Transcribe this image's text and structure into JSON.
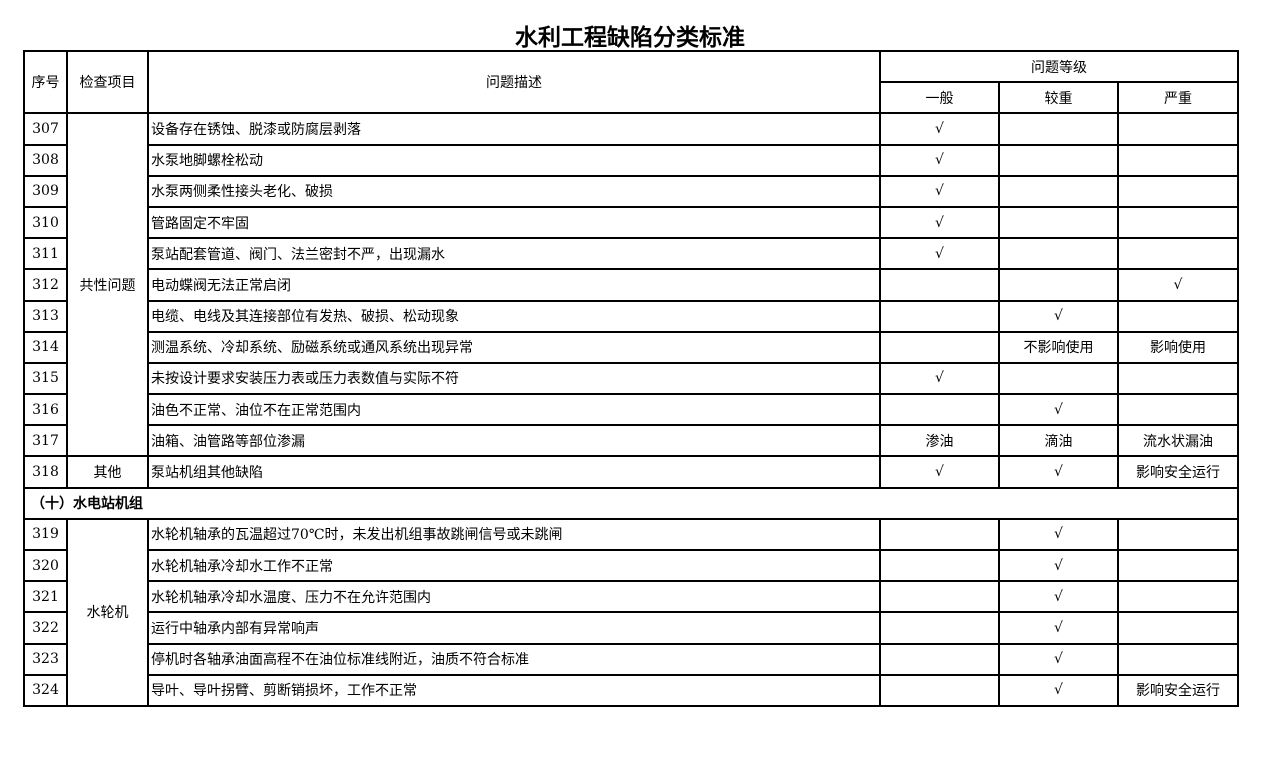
{
  "title": "水利工程缺陷分类标准",
  "headers": {
    "no": "序号",
    "item": "检查项目",
    "desc": "问题描述",
    "level": "问题等级",
    "general": "一般",
    "heavier": "较重",
    "severe": "严重"
  },
  "blocks": [
    {
      "type": "group",
      "item": "共性问题",
      "rows": [
        {
          "no": "307",
          "desc": "设备存在锈蚀、脱漆或防腐层剥落",
          "general": "√",
          "heavier": "",
          "severe": ""
        },
        {
          "no": "308",
          "desc": "水泵地脚螺栓松动",
          "general": "√",
          "heavier": "",
          "severe": ""
        },
        {
          "no": "309",
          "desc": "水泵两侧柔性接头老化、破损",
          "general": "√",
          "heavier": "",
          "severe": ""
        },
        {
          "no": "310",
          "desc": "管路固定不牢固",
          "general": "√",
          "heavier": "",
          "severe": ""
        },
        {
          "no": "311",
          "desc": "泵站配套管道、阀门、法兰密封不严，出现漏水",
          "general": "√",
          "heavier": "",
          "severe": ""
        },
        {
          "no": "312",
          "desc": "电动蝶阀无法正常启闭",
          "general": "",
          "heavier": "",
          "severe": "√"
        },
        {
          "no": "313",
          "desc": "电缆、电线及其连接部位有发热、破损、松动现象",
          "general": "",
          "heavier": "√",
          "severe": ""
        },
        {
          "no": "314",
          "desc": "测温系统、冷却系统、励磁系统或通风系统出现异常",
          "general": "",
          "heavier": "不影响使用",
          "severe": "影响使用"
        },
        {
          "no": "315",
          "desc": "未按设计要求安装压力表或压力表数值与实际不符",
          "general": "√",
          "heavier": "",
          "severe": ""
        },
        {
          "no": "316",
          "desc": "油色不正常、油位不在正常范围内",
          "general": "",
          "heavier": "√",
          "severe": ""
        },
        {
          "no": "317",
          "desc": "油箱、油管路等部位渗漏",
          "general": "渗油",
          "heavier": "滴油",
          "severe": "流水状漏油"
        }
      ]
    },
    {
      "type": "group",
      "item": "其他",
      "rows": [
        {
          "no": "318",
          "desc": "泵站机组其他缺陷",
          "general": "√",
          "heavier": "√",
          "severe": "影响安全运行"
        }
      ]
    },
    {
      "type": "section",
      "label": "（十）水电站机组"
    },
    {
      "type": "group",
      "item": "水轮机",
      "rows": [
        {
          "no": "319",
          "desc": "水轮机轴承的瓦温超过70℃时，未发出机组事故跳闸信号或未跳闸",
          "general": "",
          "heavier": "√",
          "severe": ""
        },
        {
          "no": "320",
          "desc": "水轮机轴承冷却水工作不正常",
          "general": "",
          "heavier": "√",
          "severe": ""
        },
        {
          "no": "321",
          "desc": "水轮机轴承冷却水温度、压力不在允许范围内",
          "general": "",
          "heavier": "√",
          "severe": ""
        },
        {
          "no": "322",
          "desc": "运行中轴承内部有异常响声",
          "general": "",
          "heavier": "√",
          "severe": ""
        },
        {
          "no": "323",
          "desc": "停机时各轴承油面高程不在油位标准线附近，油质不符合标准",
          "general": "",
          "heavier": "√",
          "severe": ""
        },
        {
          "no": "324",
          "desc": "导叶、导叶拐臂、剪断销损坏，工作不正常",
          "general": "",
          "heavier": "√",
          "severe": "影响安全运行"
        }
      ]
    }
  ]
}
